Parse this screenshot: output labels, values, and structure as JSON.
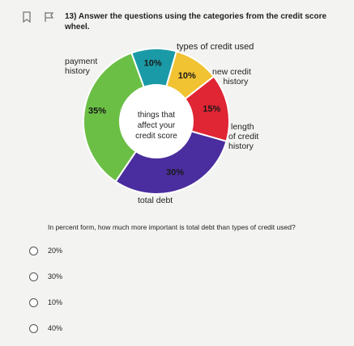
{
  "question": {
    "text": "13) Answer the questions using the categories from the credit score wheel.",
    "prompt": "In percent form, how much more important is total debt than types of credit used?"
  },
  "toolbar": {
    "icons": [
      "bookmark-icon",
      "flag-icon"
    ]
  },
  "chart_data": {
    "type": "pie",
    "style": "donut",
    "center_label": [
      "things that",
      "affect your",
      "credit score"
    ],
    "slices": [
      {
        "name": "types of credit used",
        "value": 10,
        "label": "10%",
        "color": "#1a9aa6"
      },
      {
        "name": "new credit history",
        "value": 10,
        "label": "10%",
        "color": "#f1c232"
      },
      {
        "name": "length of credit history",
        "value": 15,
        "label": "15%",
        "color": "#e02534"
      },
      {
        "name": "total debt",
        "value": 30,
        "label": "30%",
        "color": "#4a2d9e"
      },
      {
        "name": "payment history",
        "value": 35,
        "label": "35%",
        "color": "#6bbf45"
      }
    ],
    "outer_labels": {
      "types": "types of credit used",
      "new_credit": [
        "new credit",
        "history"
      ],
      "length": [
        "length",
        "of credit",
        "history"
      ],
      "total_debt": "total debt",
      "payment": [
        "payment",
        "history"
      ]
    }
  },
  "options": [
    {
      "label": "20%"
    },
    {
      "label": "30%"
    },
    {
      "label": "10%"
    },
    {
      "label": "40%"
    }
  ]
}
